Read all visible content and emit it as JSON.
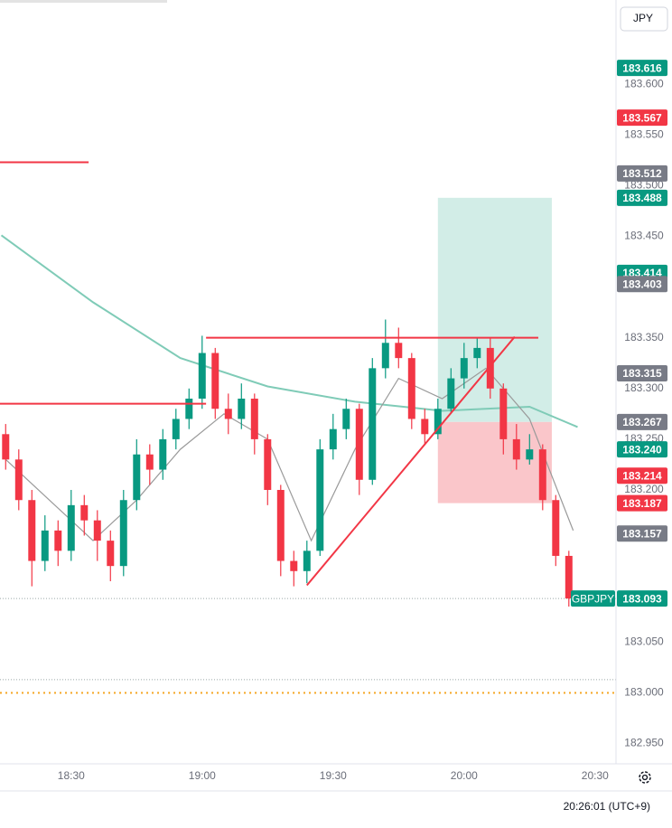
{
  "chart_data": {
    "type": "candlestick",
    "currency": "JPY",
    "clock": "20:26:01 (UTC+9)",
    "x": [
      15,
      18,
      21,
      24,
      27,
      30,
      33,
      36,
      39,
      42,
      45,
      48,
      51,
      54,
      57,
      60,
      63,
      66,
      69,
      72,
      75,
      78,
      81,
      84,
      87,
      90,
      93,
      96,
      99,
      102,
      105,
      108,
      111,
      114,
      117,
      120,
      123,
      126,
      129,
      132,
      135,
      138,
      141,
      144
    ],
    "open": [
      183.255,
      183.23,
      183.19,
      183.13,
      183.16,
      183.14,
      183.185,
      183.17,
      183.15,
      183.125,
      183.19,
      183.235,
      183.22,
      183.25,
      183.27,
      183.29,
      183.335,
      183.28,
      183.27,
      183.29,
      183.25,
      183.2,
      183.13,
      183.12,
      183.14,
      183.24,
      183.26,
      183.28,
      183.21,
      183.32,
      183.345,
      183.33,
      183.27,
      183.255,
      183.28,
      183.31,
      183.33,
      183.34,
      183.3,
      183.25,
      183.23,
      183.24,
      183.19,
      183.135
    ],
    "high": [
      183.265,
      183.24,
      183.2,
      183.175,
      183.17,
      183.2,
      183.195,
      183.18,
      183.16,
      183.2,
      183.25,
      183.245,
      183.26,
      183.28,
      183.3,
      183.352,
      183.34,
      183.295,
      183.305,
      183.295,
      183.255,
      183.205,
      183.14,
      183.15,
      183.25,
      183.275,
      183.29,
      183.285,
      183.33,
      183.368,
      183.36,
      183.335,
      183.28,
      183.29,
      183.32,
      183.345,
      183.35,
      183.35,
      183.305,
      183.265,
      183.255,
      183.245,
      183.195,
      183.14
    ],
    "low": [
      183.22,
      183.18,
      183.105,
      183.12,
      183.125,
      183.13,
      183.155,
      183.13,
      183.11,
      183.115,
      183.18,
      183.205,
      183.21,
      183.24,
      183.26,
      183.28,
      183.27,
      183.255,
      183.26,
      183.235,
      183.185,
      183.115,
      183.105,
      183.108,
      183.135,
      183.23,
      183.25,
      183.195,
      183.205,
      183.31,
      183.32,
      183.26,
      183.245,
      183.25,
      183.275,
      183.3,
      183.32,
      183.29,
      183.235,
      183.22,
      183.225,
      183.18,
      183.125,
      183.085
    ],
    "close": [
      183.23,
      183.19,
      183.13,
      183.16,
      183.14,
      183.185,
      183.17,
      183.15,
      183.125,
      183.19,
      183.235,
      183.22,
      183.25,
      183.27,
      183.29,
      183.335,
      183.28,
      183.27,
      183.29,
      183.25,
      183.2,
      183.13,
      183.12,
      183.14,
      183.24,
      183.26,
      183.28,
      183.21,
      183.32,
      183.345,
      183.33,
      183.27,
      183.255,
      183.28,
      183.31,
      183.33,
      183.34,
      183.3,
      183.25,
      183.23,
      183.24,
      183.19,
      183.135,
      183.093
    ],
    "up_color": "#089981",
    "down_color": "#f23645",
    "xlim": [
      13.7,
      154.8
    ],
    "xticks": [
      {
        "value": 30,
        "label": "18:30"
      },
      {
        "value": 60,
        "label": "19:00"
      },
      {
        "value": 90,
        "label": "19:30"
      },
      {
        "value": 120,
        "label": "20:00"
      },
      {
        "value": 150,
        "label": "20:30"
      }
    ],
    "ylim": [
      182.93,
      183.683
    ],
    "yticks": [
      {
        "value": 183.6,
        "label": "183.600"
      },
      {
        "value": 183.55,
        "label": "183.550"
      },
      {
        "value": 183.5,
        "label": "183.500"
      },
      {
        "value": 183.45,
        "label": "183.450"
      },
      {
        "value": 183.35,
        "label": "183.350"
      },
      {
        "value": 183.3,
        "label": "183.300"
      },
      {
        "value": 183.25,
        "label": "183.250"
      },
      {
        "value": 183.2,
        "label": "183.200"
      },
      {
        "value": 183.05,
        "label": "183.050"
      },
      {
        "value": 183.0,
        "label": "183.000"
      },
      {
        "value": 182.95,
        "label": "182.950"
      }
    ],
    "moving_averages": [
      {
        "color": "#7fcbb7",
        "x": [
          14,
          35,
          55,
          75,
          95,
          115,
          135,
          146
        ],
        "values": [
          183.451,
          183.385,
          183.33,
          183.302,
          183.287,
          183.278,
          183.282,
          183.262
        ]
      },
      {
        "color": "#9a9a9a",
        "x": [
          15,
          25,
          35,
          45,
          55,
          65,
          75,
          85,
          95,
          105,
          115,
          125,
          135,
          145
        ],
        "values": [
          183.23,
          183.19,
          183.15,
          183.19,
          183.24,
          183.275,
          183.25,
          183.15,
          183.24,
          183.31,
          183.29,
          183.32,
          183.27,
          183.16
        ]
      }
    ],
    "levels": [
      {
        "value": 183.523,
        "x": [
          13.7,
          34.0
        ],
        "color": "#f23645"
      },
      {
        "value": 183.285,
        "x": [
          13.7,
          60.9
        ],
        "color": "#f23645"
      },
      {
        "value": 183.35,
        "x": [
          60.9,
          137.0
        ],
        "color": "#f23645"
      }
    ],
    "trendline": {
      "x": [
        84.0,
        131.6
      ],
      "values": [
        183.106,
        183.351
      ],
      "color": "#f23645"
    },
    "boxes": [
      {
        "x": [
          114.0,
          140.1
        ],
        "values": [
          183.267,
          183.488
        ],
        "color": "#cdebe4"
      },
      {
        "x": [
          114.0,
          140.1
        ],
        "values": [
          183.187,
          183.267
        ],
        "color": "#f9c0c4"
      }
    ],
    "dotted_lines": [
      {
        "value": 183.093,
        "color": "#9aa6a6"
      },
      {
        "value": 183.013,
        "color": "#9aa6a6"
      },
      {
        "value": 183.0,
        "color": "#f5a623"
      }
    ],
    "price_labels": [
      {
        "value": 183.616,
        "label": "183.616",
        "color": "#089981"
      },
      {
        "value": 183.567,
        "label": "183.567",
        "color": "#f23645"
      },
      {
        "value": 183.512,
        "label": "183.512",
        "color": "#787b86"
      },
      {
        "value": 183.488,
        "label": "183.488",
        "color": "#089981"
      },
      {
        "value": 183.414,
        "label": "183.414",
        "color": "#089981"
      },
      {
        "value": 183.403,
        "label": "183.403",
        "color": "#787b86"
      },
      {
        "value": 183.315,
        "label": "183.315",
        "color": "#787b86"
      },
      {
        "value": 183.267,
        "label": "183.267",
        "color": "#787b86"
      },
      {
        "value": 183.24,
        "label": "183.240",
        "color": "#089981"
      },
      {
        "value": 183.214,
        "label": "183.214",
        "color": "#f23645"
      },
      {
        "value": 183.187,
        "label": "183.187",
        "color": "#f23645"
      },
      {
        "value": 183.157,
        "label": "183.157",
        "color": "#787b86"
      },
      {
        "value": 183.093,
        "label": "183.093",
        "color": "#089981",
        "symbol": "GBPJPY"
      }
    ]
  }
}
